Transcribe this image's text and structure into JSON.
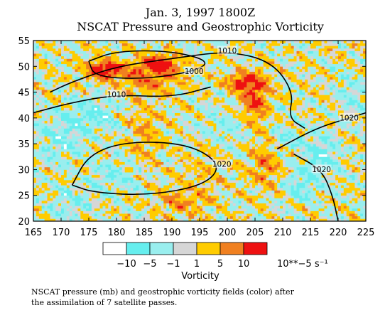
{
  "chart_data": {
    "type": "heatmap",
    "title": "Jan. 3, 1997  1800Z",
    "subtitle": "NSCAT Pressure and Geostrophic Vorticity",
    "xlim": [
      165,
      225
    ],
    "ylim": [
      20,
      55
    ],
    "x_ticks": [
      "165",
      "170",
      "175",
      "180",
      "185",
      "190",
      "195",
      "200",
      "205",
      "210",
      "215",
      "220",
      "225"
    ],
    "y_ticks": [
      "20",
      "25",
      "30",
      "35",
      "40",
      "45",
      "50",
      "55"
    ],
    "vorticity_scale": {
      "label": "Vorticity",
      "unit_label": "10**−5 s⁻¹",
      "boundaries": [
        "−10",
        "−5",
        "−1",
        "1",
        "5",
        "10"
      ],
      "colors": [
        "#ffffff",
        "#66eeee",
        "#99eeee",
        "#d6d6d6",
        "#ffcc00",
        "#f08020",
        "#ee1111"
      ]
    },
    "pressure_contours": [
      {
        "label": "1000",
        "value": 1000,
        "points": [
          [
            175,
            51
          ],
          [
            180,
            53
          ],
          [
            190,
            53
          ],
          [
            197,
            51
          ],
          [
            194,
            49
          ],
          [
            185,
            47.5
          ],
          [
            176,
            48
          ],
          [
            175,
            51
          ]
        ]
      },
      {
        "label": "1010",
        "value": 1010,
        "points": [
          [
            168,
            45
          ],
          [
            172,
            47
          ],
          [
            180,
            50
          ],
          [
            190,
            51.5
          ],
          [
            200,
            53
          ],
          [
            208,
            51
          ],
          [
            212,
            45
          ],
          [
            211,
            40
          ],
          [
            214,
            38
          ]
        ]
      },
      {
        "label": "1010",
        "value": 1010,
        "points": [
          [
            165,
            41
          ],
          [
            172,
            43
          ],
          [
            180,
            44.5
          ],
          [
            190,
            44
          ],
          [
            197,
            46
          ]
        ]
      },
      {
        "label": "1020",
        "value": 1020,
        "points": [
          [
            172,
            27
          ],
          [
            175,
            33
          ],
          [
            182,
            35.5
          ],
          [
            193,
            35
          ],
          [
            199,
            31
          ],
          [
            196,
            27
          ],
          [
            186,
            25
          ],
          [
            176,
            25.5
          ],
          [
            172,
            27
          ]
        ]
      },
      {
        "label": "1020",
        "value": 1020,
        "points": [
          [
            209,
            34
          ],
          [
            216,
            38
          ],
          [
            222,
            40
          ],
          [
            225,
            41
          ]
        ]
      },
      {
        "label": "1020",
        "value": 1020,
        "points": [
          [
            220,
            20
          ],
          [
            219,
            25
          ],
          [
            217,
            30
          ],
          [
            212,
            33
          ]
        ]
      }
    ],
    "vorticity_maxima": [
      {
        "lon": 178,
        "lat": 49.5,
        "value": 15
      },
      {
        "lon": 188,
        "lat": 50.5,
        "value": 12
      },
      {
        "lon": 203,
        "lat": 47,
        "value": 12
      }
    ]
  },
  "legend": {
    "labels": [
      "−10",
      "−5",
      "−1",
      "1",
      "5",
      "10",
      "10**−5 s⁻¹"
    ],
    "title": "Vorticity"
  },
  "caption": {
    "line1": "NSCAT pressure (mb) and geostrophic vorticity fields (color) after",
    "line2": "the assimilation of 7 satellite passes."
  }
}
